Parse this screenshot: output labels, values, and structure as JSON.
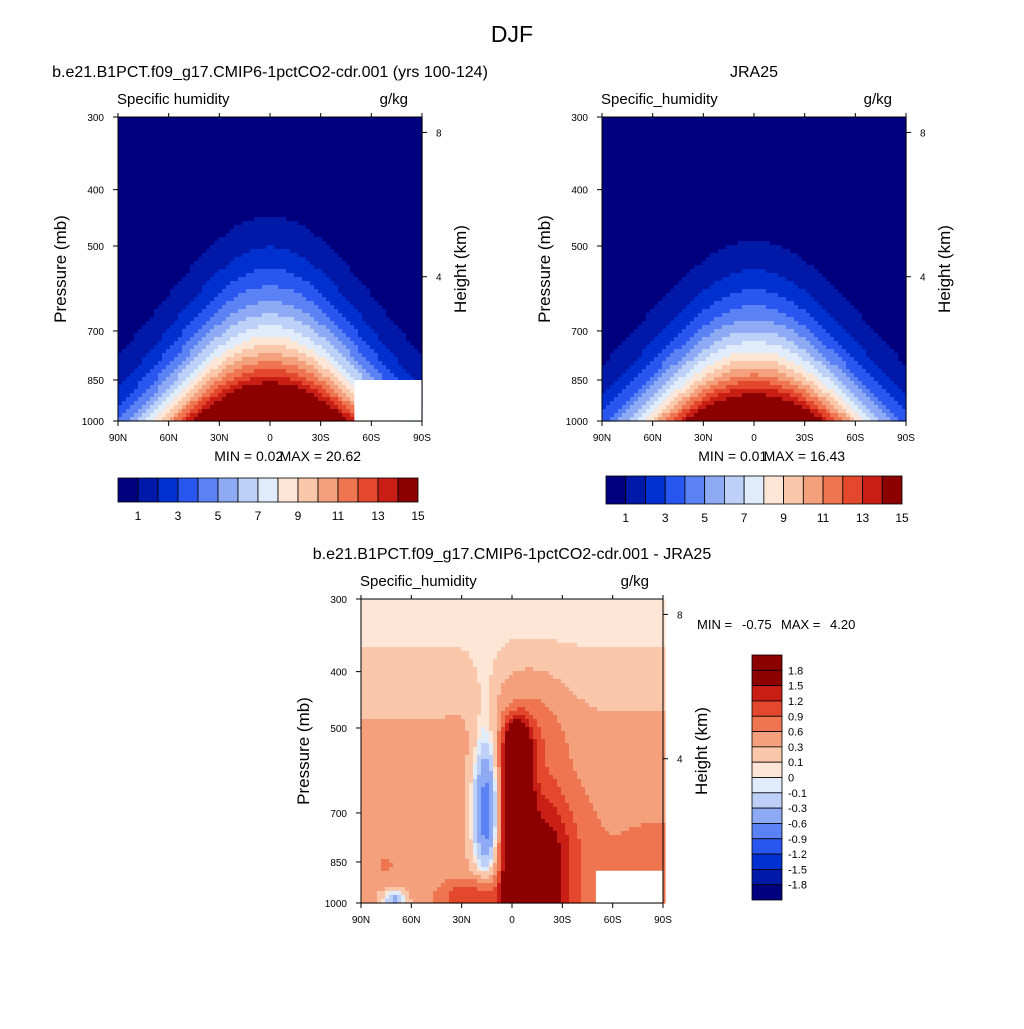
{
  "page": {
    "title": "DJF"
  },
  "colormaps": {
    "humidity": [
      "#00007f",
      "#0019a8",
      "#0030d0",
      "#2a56f0",
      "#5a82f5",
      "#8eaaf5",
      "#bdd0f8",
      "#e0ebfb",
      "#fde6d5",
      "#fbc7ab",
      "#f5a07c",
      "#ee7550",
      "#e3482c",
      "#c91e16",
      "#8c0000"
    ],
    "diff": [
      "#00007f",
      "#0019a8",
      "#0030d0",
      "#2a56f0",
      "#5a82f5",
      "#8eaaf5",
      "#bdd0f8",
      "#e0ebfb",
      "#fde6d5",
      "#fbc7ab",
      "#f5a07c",
      "#ee7550",
      "#e3482c",
      "#c91e16",
      "#8c0000"
    ]
  },
  "chart_data": [
    {
      "id": "model",
      "type": "heatmap",
      "title": "b.e21.B1PCT.f09_g17.CMIP6-1pctCO2-cdr.001 (yrs 100-124)",
      "variable_label": "Specific humidity",
      "units": "g/kg",
      "ylabel": "Pressure (mb)",
      "y2label": "Height (km)",
      "x_ticks": [
        "90N",
        "60N",
        "30N",
        "0",
        "30S",
        "60S",
        "90S"
      ],
      "x_tick_values": [
        90,
        60,
        30,
        0,
        -30,
        -60,
        -90
      ],
      "y_ticks": [
        300,
        400,
        500,
        700,
        850,
        1000
      ],
      "y2_ticks": [
        8,
        4
      ],
      "stats": {
        "min_label": "MIN =",
        "min": "0.02",
        "max_label": "MAX =",
        "max": "20.62"
      },
      "levels": [
        1,
        2,
        3,
        4,
        5,
        6,
        7,
        8,
        9,
        10,
        11,
        12,
        13,
        14
      ],
      "colorbar_labels": [
        "1",
        "3",
        "5",
        "7",
        "9",
        "11",
        "13",
        "15"
      ],
      "surface_mask": [
        [
          -50,
          850
        ],
        [
          -90,
          850
        ],
        [
          -90,
          1000
        ],
        [
          -50,
          1000
        ]
      ],
      "field": {
        "peak": 17.5,
        "center_lat": 0,
        "top_base_p": 330,
        "top_hw": 18,
        "base_hw": 70,
        "bg_height": 0.25,
        "bg_width": 60
      }
    },
    {
      "id": "obs",
      "type": "heatmap",
      "title": "JRA25",
      "variable_label": "Specific_humidity",
      "units": "g/kg",
      "ylabel": "Pressure (mb)",
      "y2label": "Height (km)",
      "x_ticks": [
        "90N",
        "60N",
        "30N",
        "0",
        "30S",
        "60S",
        "90S"
      ],
      "x_tick_values": [
        90,
        60,
        30,
        0,
        -30,
        -60,
        -90
      ],
      "y_ticks": [
        300,
        400,
        500,
        700,
        850,
        1000
      ],
      "y2_ticks": [
        8,
        4
      ],
      "stats": {
        "min_label": "MIN =",
        "min": "0.01",
        "max_label": "MAX =",
        "max": "16.43"
      },
      "levels": [
        1,
        2,
        3,
        4,
        5,
        6,
        7,
        8,
        9,
        10,
        11,
        12,
        13,
        14
      ],
      "colorbar_labels": [
        "1",
        "3",
        "5",
        "7",
        "9",
        "11",
        "13",
        "15"
      ],
      "surface_mask": [],
      "field": {
        "peak": 15.5,
        "center_lat": 0,
        "top_base_p": 400,
        "top_hw": 18,
        "base_hw": 70,
        "bg_height": 0.25,
        "bg_width": 60
      }
    },
    {
      "id": "diff",
      "type": "heatmap",
      "title": "b.e21.B1PCT.f09_g17.CMIP6-1pctCO2-cdr.001 - JRA25",
      "variable_label": "Specific_humidity",
      "units": "g/kg",
      "ylabel": "Pressure (mb)",
      "y2label": "Height (km)",
      "x_ticks": [
        "90N",
        "60N",
        "30N",
        "0",
        "30S",
        "60S",
        "90S"
      ],
      "x_tick_values": [
        90,
        60,
        30,
        0,
        -30,
        -60,
        -90
      ],
      "y_ticks": [
        300,
        400,
        500,
        700,
        850,
        1000
      ],
      "y2_ticks": [
        8,
        4
      ],
      "stats": {
        "min_label": "MIN =",
        "min": "-0.75",
        "max_label": "MAX =",
        "max": "4.20"
      },
      "levels": [
        -1.8,
        -1.5,
        -1.2,
        -0.9,
        -0.6,
        -0.3,
        -0.1,
        0,
        0.1,
        0.3,
        0.6,
        0.9,
        1.2,
        1.5,
        1.8
      ],
      "colorbar_labels": [
        "1.8",
        "1.5",
        "1.2",
        "0.9",
        "0.6",
        "0.3",
        "0.1",
        "0",
        "-0.1",
        "-0.3",
        "-0.6",
        "-0.9",
        "-1.2",
        "-1.5",
        "-1.8"
      ],
      "surface_mask": [
        [
          -50,
          880
        ],
        [
          -90,
          880
        ],
        [
          -90,
          1000
        ],
        [
          -50,
          1000
        ]
      ]
    }
  ]
}
